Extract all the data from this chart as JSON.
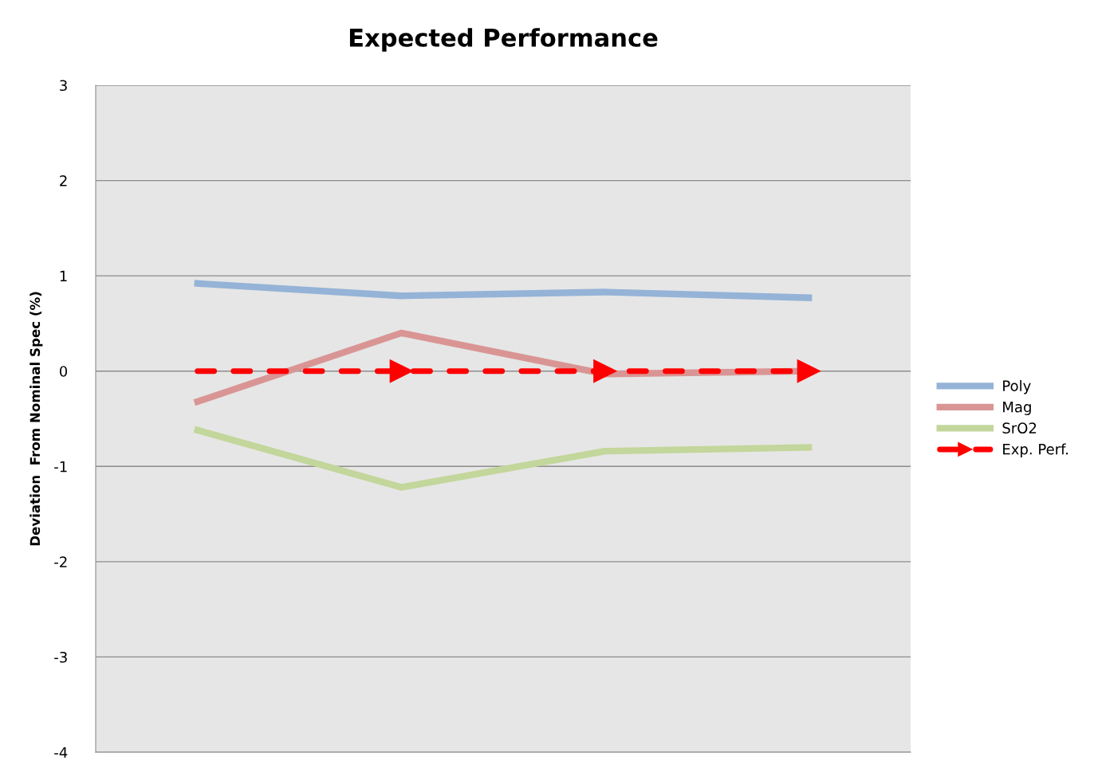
{
  "chart_data": {
    "type": "line",
    "title": "Expected Performance",
    "ylabel": "Deviation  From Nominal Spec (%)",
    "categories": [
      null,
      null,
      null,
      null
    ],
    "series": [
      {
        "name": "Poly",
        "color": "#95b3d7",
        "values": [
          0.92,
          0.79,
          0.83,
          0.77
        ]
      },
      {
        "name": "Mag",
        "color": "#d99594",
        "values": [
          -0.32,
          0.4,
          -0.03,
          0.0
        ]
      },
      {
        "name": "SrO2",
        "color": "#c3d69b",
        "values": [
          -0.62,
          -1.22,
          -0.84,
          -0.8
        ]
      },
      {
        "name": "Exp. Perf.",
        "color": "#ff0000",
        "values": [
          0,
          0,
          0,
          0
        ],
        "line_style": "dashed",
        "marker": "triangle"
      }
    ],
    "ylim": [
      -4,
      3
    ],
    "yticks": [
      -4,
      -3,
      -2,
      -1,
      0,
      1,
      2,
      3
    ],
    "grid": "y",
    "legend": "right"
  }
}
